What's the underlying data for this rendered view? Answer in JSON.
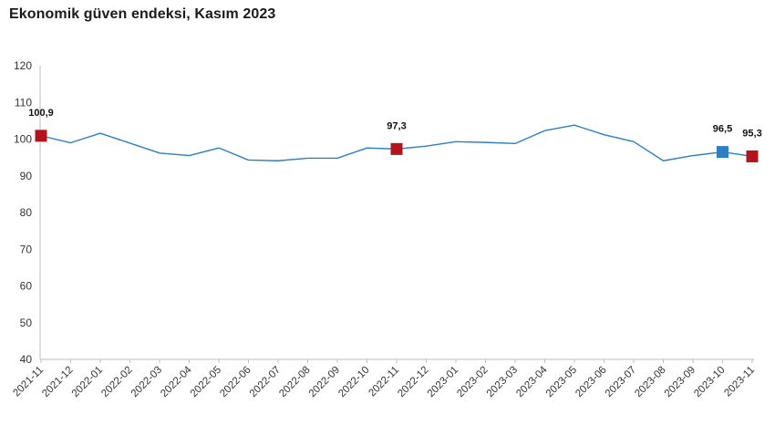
{
  "chart_data": {
    "type": "line",
    "title": "Ekonomik güven endeksi, Kasım 2023",
    "xlabel": "",
    "ylabel": "",
    "ylim": [
      40,
      120
    ],
    "yticks": [
      40,
      50,
      60,
      70,
      80,
      90,
      100,
      110,
      120
    ],
    "grid": false,
    "legend": "none",
    "line_color": "#2e7fc1",
    "categories": [
      "2021-11",
      "2021-12",
      "2022-01",
      "2022-02",
      "2022-03",
      "2022-04",
      "2022-05",
      "2022-06",
      "2022-07",
      "2022-08",
      "2022-09",
      "2022-10",
      "2022-11",
      "2022-12",
      "2023-01",
      "2023-02",
      "2023-03",
      "2023-04",
      "2023-05",
      "2023-06",
      "2023-07",
      "2023-08",
      "2023-09",
      "2023-10",
      "2023-11"
    ],
    "values": [
      100.9,
      99.0,
      101.6,
      98.9,
      96.2,
      95.5,
      97.6,
      94.3,
      94.1,
      94.8,
      94.8,
      97.6,
      97.3,
      98.1,
      99.3,
      99.1,
      98.8,
      102.3,
      103.8,
      101.2,
      99.3,
      94.1,
      95.5,
      96.5,
      95.3
    ],
    "highlights": [
      {
        "index": 0,
        "label": "100,9",
        "color": "#b3141c"
      },
      {
        "index": 12,
        "label": "97,3",
        "color": "#b3141c"
      },
      {
        "index": 23,
        "label": "96,5",
        "color": "#2e7fc1"
      },
      {
        "index": 24,
        "label": "95,3",
        "color": "#b3141c"
      }
    ]
  }
}
